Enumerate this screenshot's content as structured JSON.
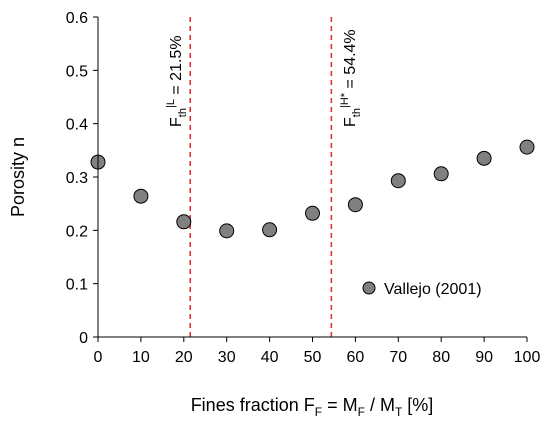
{
  "chart_data": {
    "type": "scatter",
    "xlabel": {
      "main": "Fines fraction F",
      "sub1": "F",
      "mid": " = M",
      "sub2": "F",
      "mid2": " / M",
      "sub3": "T",
      "end": " [%]"
    },
    "ylabel": "Porosity n",
    "xlim": [
      0,
      100
    ],
    "ylim": [
      0,
      0.6
    ],
    "xticks": [
      0,
      10,
      20,
      30,
      40,
      50,
      60,
      70,
      80,
      90,
      100
    ],
    "yticks": [
      0,
      0.1,
      0.2,
      0.3,
      0.4,
      0.5,
      0.6
    ],
    "ytick_labels": [
      "0",
      "0.1",
      "0.2",
      "0.3",
      "0.4",
      "0.5",
      "0.6"
    ],
    "grid": false,
    "legend_position": "bottom-right",
    "series": [
      {
        "name": "Vallejo (2001)",
        "x": [
          0,
          10,
          20,
          30,
          40,
          50,
          60,
          70,
          80,
          90,
          100
        ],
        "y": [
          0.328,
          0.264,
          0.216,
          0.199,
          0.201,
          0.232,
          0.248,
          0.293,
          0.306,
          0.335,
          0.356
        ],
        "marker_color": "#808080"
      }
    ],
    "thresholds": [
      {
        "x": 21.5,
        "label_main": "F",
        "label_sub": "th",
        "label_sup": "|L",
        "label_end": " = 21.5%",
        "color": "#e0262b"
      },
      {
        "x": 54.4,
        "label_main": "F",
        "label_sub": "th",
        "label_sup": "|H*",
        "label_end": " = 54.4%",
        "color": "#e0262b"
      }
    ]
  }
}
